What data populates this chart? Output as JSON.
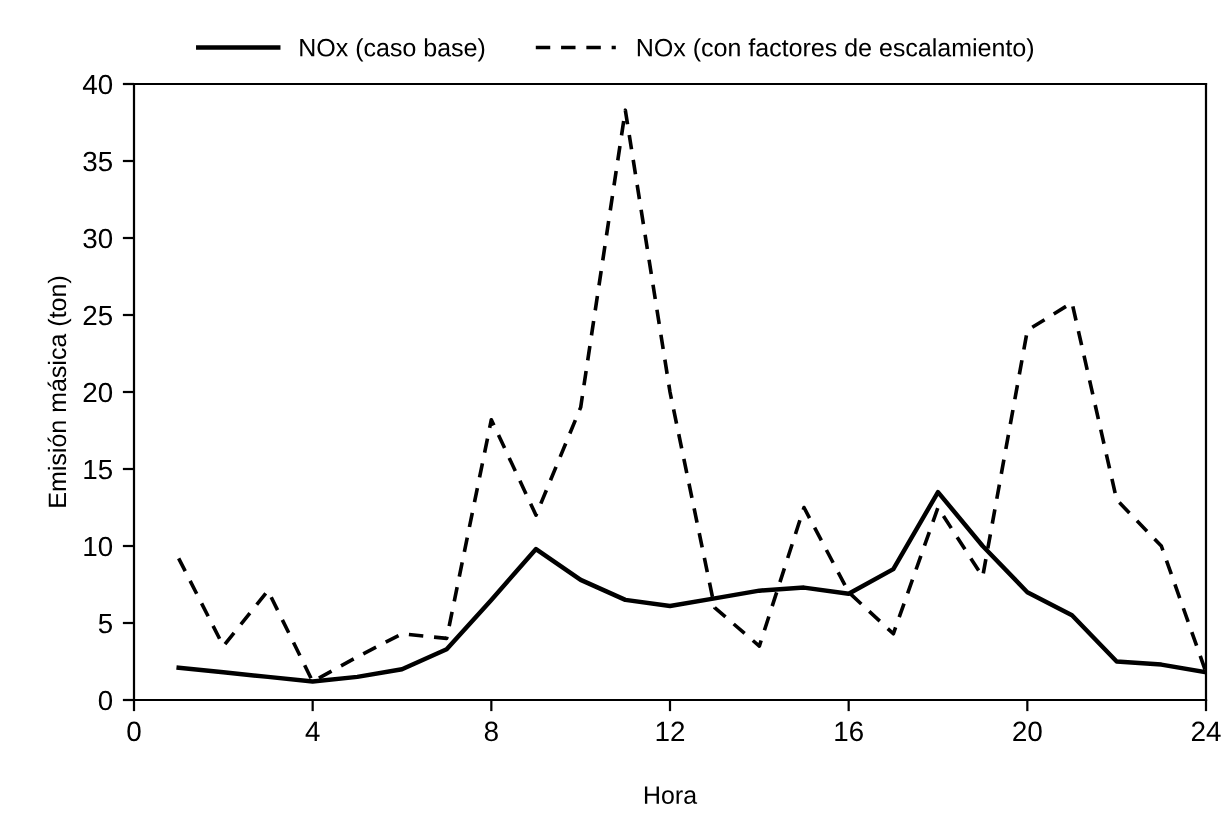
{
  "chart_data": {
    "type": "line",
    "xlabel": "Hora",
    "ylabel": "Emisión másica (ton)",
    "x": [
      1,
      2,
      3,
      4,
      5,
      6,
      7,
      8,
      9,
      10,
      11,
      12,
      13,
      14,
      15,
      16,
      17,
      18,
      19,
      20,
      21,
      22,
      23,
      24
    ],
    "series": [
      {
        "name": "NOx (caso base)",
        "color": "#000000",
        "line_style": "solid",
        "values": [
          2.1,
          1.8,
          1.5,
          1.2,
          1.5,
          2.0,
          3.3,
          6.5,
          9.8,
          7.8,
          6.5,
          6.1,
          6.6,
          7.1,
          7.3,
          6.9,
          8.5,
          13.5,
          10.0,
          7.0,
          5.5,
          2.5,
          2.3,
          1.8
        ]
      },
      {
        "name": "NOx (con factores de escalamiento)",
        "color": "#000000",
        "line_style": "dashed",
        "values": [
          9.2,
          3.5,
          7.1,
          1.2,
          2.8,
          4.3,
          4.0,
          18.2,
          12.0,
          19.0,
          38.3,
          20.0,
          6.0,
          3.5,
          12.5,
          7.0,
          4.3,
          12.5,
          8.0,
          24.0,
          25.8,
          13.0,
          10.0,
          1.8
        ]
      }
    ],
    "xlim": [
      0,
      24
    ],
    "xticks": [
      0,
      4,
      8,
      12,
      16,
      20,
      24
    ],
    "ylim": [
      0,
      40
    ],
    "yticks": [
      0,
      5,
      10,
      15,
      20,
      25,
      30,
      35,
      40
    ],
    "grid": false,
    "legend": "top",
    "marker": "none"
  }
}
